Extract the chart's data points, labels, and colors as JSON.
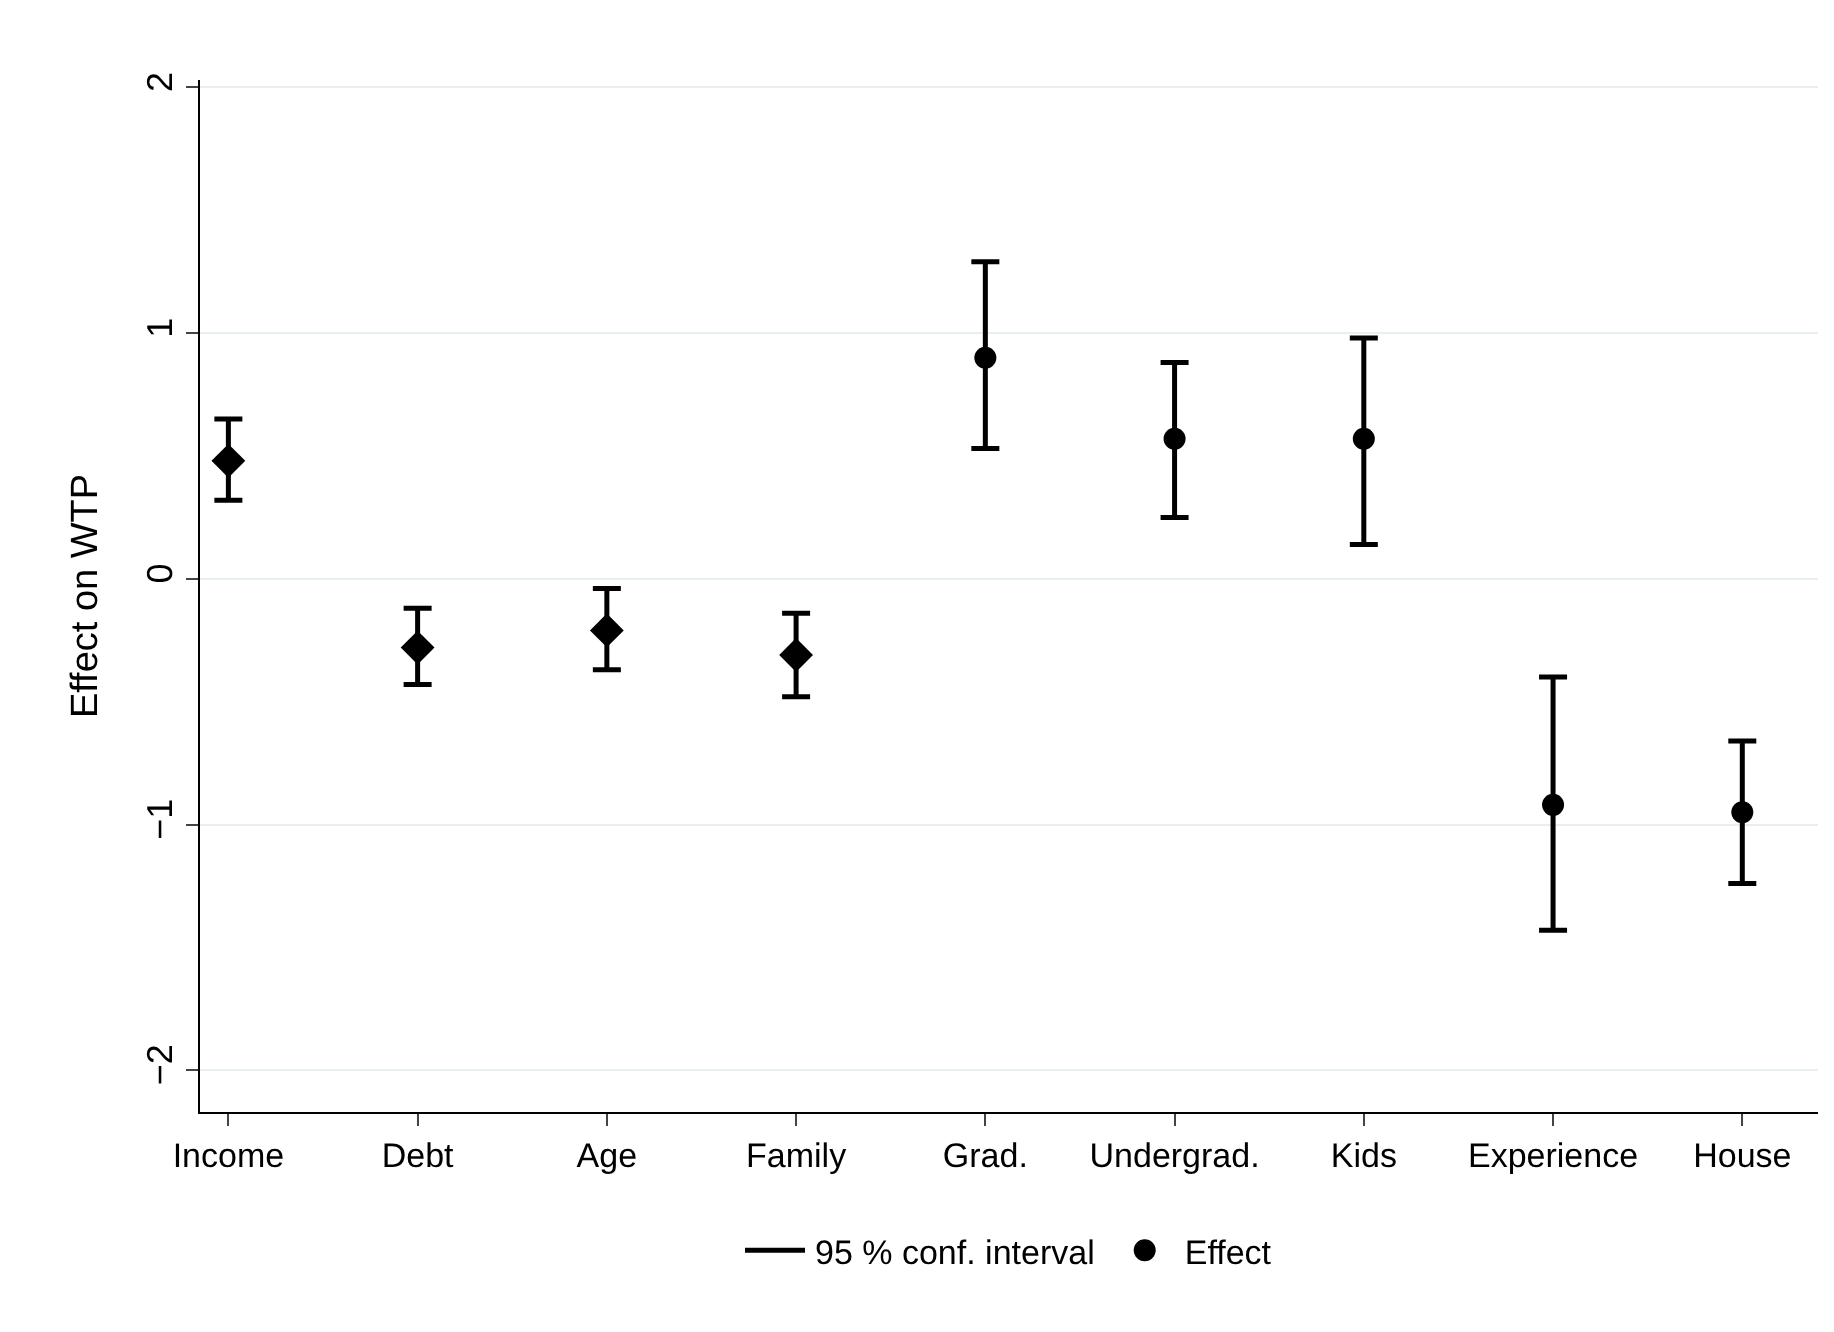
{
  "chart_data": {
    "type": "scatter",
    "ylabel": "Effect on WTP",
    "categories": [
      "Income",
      "Debt",
      "Age",
      "Family",
      "Grad.",
      "Undergrad.",
      "Kids",
      "Experience",
      "House"
    ],
    "ylim": [
      -2.17,
      2.03
    ],
    "yticks": [
      -2,
      -1,
      0,
      1,
      2
    ],
    "grid": "y",
    "legend": "bottom",
    "annotations": [
      "95 % conf. interval"
    ],
    "series": [
      {
        "color": "#000000",
        "marker": "diamond",
        "values": [
          0.48,
          -0.28,
          -0.21,
          -0.31,
          null,
          null,
          null,
          null,
          null
        ],
        "errors": [
          [
            0.32,
            0.65
          ],
          [
            -0.43,
            -0.12
          ],
          [
            -0.37,
            -0.04
          ],
          [
            -0.48,
            -0.14
          ],
          null,
          null,
          null,
          null,
          null
        ]
      },
      {
        "name": "Effect",
        "color": "#000000",
        "marker": "circle",
        "values": [
          null,
          null,
          null,
          null,
          0.9,
          0.57,
          0.57,
          -0.92,
          -0.95
        ],
        "errors": [
          null,
          null,
          null,
          null,
          [
            0.53,
            1.29
          ],
          [
            0.25,
            0.88
          ],
          [
            0.14,
            0.98
          ],
          [
            -1.43,
            -0.4
          ],
          [
            -1.24,
            -0.66
          ]
        ]
      }
    ]
  }
}
